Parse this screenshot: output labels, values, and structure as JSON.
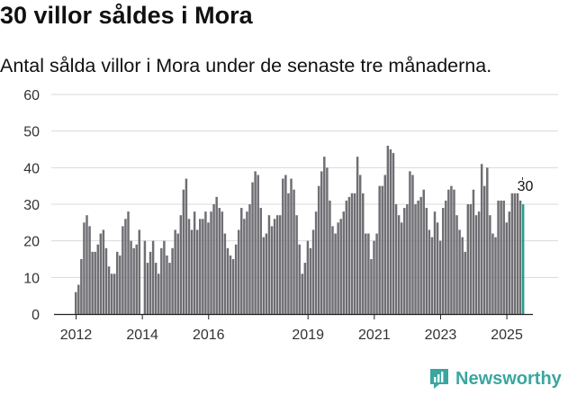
{
  "header": {
    "title": "30 villor såldes i Mora",
    "subtitle": "Antal sålda villor i Mora under de senaste tre månaderna."
  },
  "brand": {
    "name": "Newsworthy",
    "color": "#3aa6a0"
  },
  "colors": {
    "bar": "#6e6e73",
    "highlight": "#2a9d8f",
    "grid": "#d9d9d9",
    "axis": "#222222"
  },
  "chart_data": {
    "type": "bar",
    "title": "30 villor såldes i Mora",
    "subtitle": "Antal sålda villor i Mora under de senaste tre månaderna.",
    "xlabel": "",
    "ylabel": "",
    "ylim": [
      0,
      60
    ],
    "yticks": [
      0,
      10,
      20,
      30,
      40,
      50,
      60
    ],
    "grid": true,
    "start_year": 2012,
    "x_tick_labels": [
      "2012",
      "2014",
      "2016",
      "2019",
      "2021",
      "2023",
      "2025"
    ],
    "highlight_label": "30",
    "values": [
      6,
      8,
      15,
      25,
      27,
      24,
      17,
      17,
      19,
      22,
      23,
      18,
      13,
      11,
      11,
      17,
      16,
      24,
      26,
      28,
      20,
      18,
      19,
      23,
      0,
      20,
      14,
      17,
      20,
      14,
      11,
      18,
      20,
      16,
      14,
      18,
      23,
      22,
      27,
      34,
      37,
      26,
      23,
      28,
      23,
      26,
      26,
      28,
      25,
      28,
      30,
      32,
      29,
      28,
      22,
      18,
      16,
      15,
      19,
      23,
      29,
      26,
      28,
      30,
      36,
      39,
      38,
      29,
      21,
      22,
      27,
      24,
      26,
      27,
      27,
      37,
      38,
      33,
      37,
      34,
      27,
      19,
      11,
      14,
      20,
      18,
      23,
      28,
      35,
      39,
      43,
      40,
      31,
      24,
      22,
      25,
      26,
      28,
      31,
      32,
      33,
      33,
      43,
      38,
      33,
      22,
      22,
      15,
      20,
      22,
      35,
      35,
      38,
      46,
      45,
      44,
      30,
      27,
      25,
      29,
      30,
      39,
      38,
      30,
      31,
      32,
      34,
      29,
      23,
      21,
      28,
      25,
      20,
      29,
      31,
      34,
      35,
      34,
      27,
      23,
      21,
      17,
      30,
      30,
      34,
      27,
      28,
      41,
      35,
      40,
      27,
      22,
      21,
      31,
      31,
      31,
      25,
      28,
      33,
      33,
      33,
      31,
      30
    ]
  }
}
